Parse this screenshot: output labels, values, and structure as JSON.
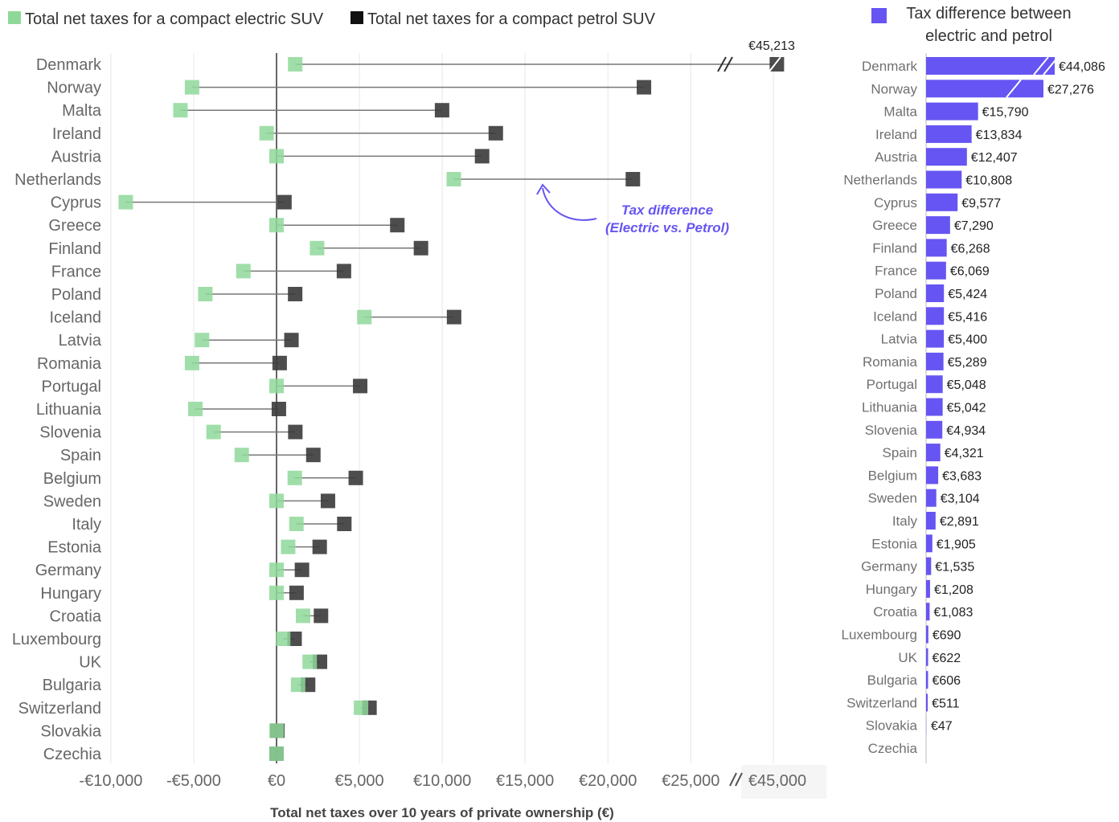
{
  "colors": {
    "electric": "#8fd89a",
    "petrol": "#3a3a3a",
    "difference": "#6655f2",
    "grid": "#e6e6e6",
    "zero_line": "#666666",
    "connector": "#777777"
  },
  "legend": {
    "electric_label": "Total net taxes for a compact electric SUV",
    "petrol_label": "Total net taxes for a compact petrol SUV",
    "difference_label_line1": "Tax difference between",
    "difference_label_line2": "electric and petrol"
  },
  "annotation": {
    "line1": "Tax difference",
    "line2": "(Electric vs. Petrol)"
  },
  "chart_data": [
    {
      "type": "dumbbell",
      "xlabel": "Total net taxes over 10 years of private ownership (€)",
      "x_ticks": [
        "-€10,000",
        "-€5,000",
        "€0",
        "€5,000",
        "€10,000",
        "€15,000",
        "€20,000",
        "€25,000",
        "€45,000"
      ],
      "x_range": [
        -10000,
        45000
      ],
      "axis_break": [
        27000,
        44500
      ],
      "grid": true,
      "legend_position": "top",
      "categories": [
        "Denmark",
        "Norway",
        "Malta",
        "Ireland",
        "Austria",
        "Netherlands",
        "Cyprus",
        "Greece",
        "Finland",
        "France",
        "Poland",
        "Iceland",
        "Latvia",
        "Romania",
        "Portugal",
        "Lithuania",
        "Slovenia",
        "Spain",
        "Belgium",
        "Sweden",
        "Italy",
        "Estonia",
        "Germany",
        "Hungary",
        "Croatia",
        "Luxembourg",
        "UK",
        "Bulgaria",
        "Switzerland",
        "Slovakia",
        "Czechia"
      ],
      "series": [
        {
          "name": "Total net taxes for a compact electric SUV",
          "values": [
            1127,
            -5100,
            -5800,
            -600,
            0,
            10700,
            -9100,
            0,
            2450,
            -2000,
            -4300,
            5300,
            -4500,
            -5100,
            0,
            -4900,
            -3800,
            -2100,
            1100,
            0,
            1200,
            700,
            0,
            0,
            1600,
            400,
            2000,
            1300,
            5100,
            0,
            0
          ]
        },
        {
          "name": "Total net taxes for a compact petrol SUV",
          "values": [
            45213,
            22176,
            9990,
            13234,
            12407,
            21508,
            477,
            7290,
            8718,
            4069,
            1124,
            10716,
            900,
            189,
            5048,
            142,
            1134,
            2221,
            4783,
            3104,
            4091,
            2605,
            1535,
            1208,
            2683,
            1090,
            2622,
            1906,
            5611,
            47,
            0
          ]
        }
      ],
      "annotated_value": "€45,213"
    },
    {
      "type": "bar",
      "orientation": "horizontal",
      "title": "Tax difference between electric and petrol",
      "categories": [
        "Denmark",
        "Norway",
        "Malta",
        "Ireland",
        "Austria",
        "Netherlands",
        "Cyprus",
        "Greece",
        "Finland",
        "France",
        "Poland",
        "Iceland",
        "Latvia",
        "Romania",
        "Portugal",
        "Lithuania",
        "Slovenia",
        "Spain",
        "Belgium",
        "Sweden",
        "Italy",
        "Estonia",
        "Germany",
        "Hungary",
        "Croatia",
        "Luxembourg",
        "UK",
        "Bulgaria",
        "Switzerland",
        "Slovakia",
        "Czechia"
      ],
      "values": [
        44086,
        27276,
        15790,
        13834,
        12407,
        10808,
        9577,
        7290,
        6268,
        6069,
        5424,
        5416,
        5400,
        5289,
        5048,
        5042,
        4934,
        4321,
        3683,
        3104,
        2891,
        1905,
        1535,
        1208,
        1083,
        690,
        622,
        606,
        511,
        47,
        0
      ],
      "labels": [
        "€44,086",
        "€27,276",
        "€15,790",
        "€13,834",
        "€12,407",
        "€10,808",
        "€9,577",
        "€7,290",
        "€6,268",
        "€6,069",
        "€5,424",
        "€5,416",
        "€5,400",
        "€5,289",
        "€5,048",
        "€5,042",
        "€4,934",
        "€4,321",
        "€3,683",
        "€3,104",
        "€2,891",
        "€1,905",
        "€1,535",
        "€1,208",
        "€1,083",
        "€690",
        "€622",
        "€606",
        "€511",
        "€47",
        ""
      ],
      "broken_bars": [
        "Denmark",
        "Norway"
      ]
    }
  ]
}
